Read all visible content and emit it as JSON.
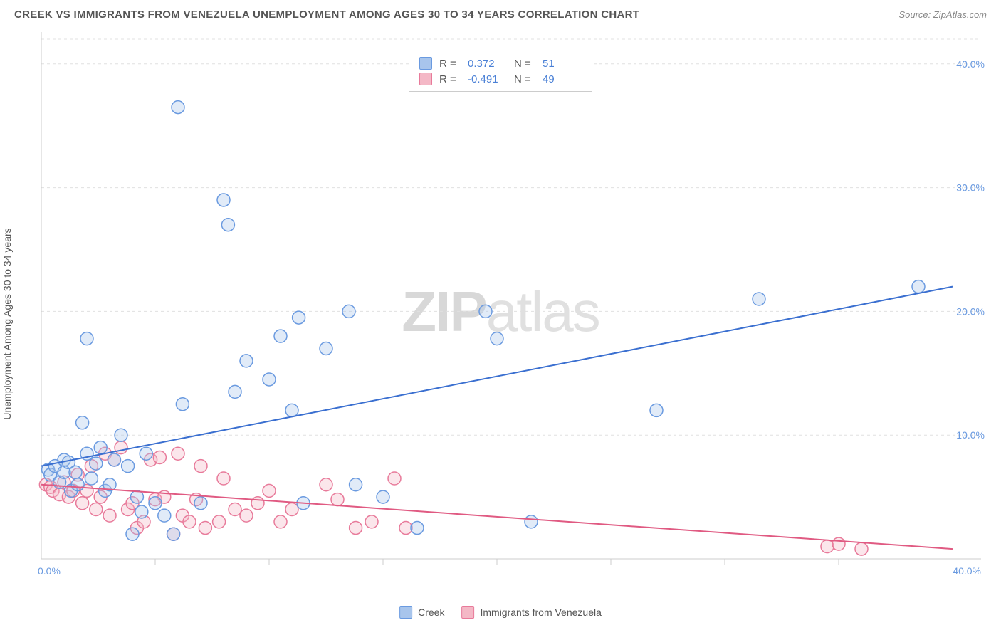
{
  "title": "CREEK VS IMMIGRANTS FROM VENEZUELA UNEMPLOYMENT AMONG AGES 30 TO 34 YEARS CORRELATION CHART",
  "source": "Source: ZipAtlas.com",
  "ylabel": "Unemployment Among Ages 30 to 34 years",
  "watermark_a": "ZIP",
  "watermark_b": "atlas",
  "chart": {
    "type": "scatter",
    "background_color": "#ffffff",
    "grid_color": "#e0e0e0",
    "axis_color": "#cccccc",
    "xlim": [
      0,
      40
    ],
    "ylim": [
      0,
      42
    ],
    "xtick_min_label": "0.0%",
    "xtick_max_label": "40.0%",
    "ytick_labels": [
      "10.0%",
      "20.0%",
      "30.0%",
      "40.0%"
    ],
    "ytick_values": [
      10,
      20,
      30,
      40
    ],
    "marker_radius": 9,
    "marker_fill_opacity": 0.35,
    "marker_stroke_width": 1.5,
    "line_width": 2
  },
  "series": [
    {
      "name": "Creek",
      "color_fill": "#a8c5ec",
      "color_stroke": "#6a9ae0",
      "line_color": "#3a6fd0",
      "R": "0.372",
      "N": "51",
      "trend": {
        "x1": 0,
        "y1": 7.5,
        "x2": 40,
        "y2": 22.0
      },
      "points": [
        [
          0.3,
          7.2
        ],
        [
          0.4,
          6.8
        ],
        [
          0.6,
          7.5
        ],
        [
          0.8,
          6.2
        ],
        [
          1.0,
          7.0
        ],
        [
          1.0,
          8.0
        ],
        [
          1.2,
          7.8
        ],
        [
          1.3,
          5.5
        ],
        [
          1.5,
          7.0
        ],
        [
          1.6,
          6.0
        ],
        [
          1.8,
          11.0
        ],
        [
          2.0,
          17.8
        ],
        [
          2.0,
          8.5
        ],
        [
          2.2,
          6.5
        ],
        [
          2.4,
          7.7
        ],
        [
          2.6,
          9.0
        ],
        [
          2.8,
          5.5
        ],
        [
          3.0,
          6.0
        ],
        [
          3.2,
          8.0
        ],
        [
          3.5,
          10.0
        ],
        [
          3.8,
          7.5
        ],
        [
          4.0,
          2.0
        ],
        [
          4.2,
          5.0
        ],
        [
          4.4,
          3.8
        ],
        [
          4.6,
          8.5
        ],
        [
          5.0,
          4.5
        ],
        [
          5.4,
          3.5
        ],
        [
          5.8,
          2.0
        ],
        [
          6.0,
          36.5
        ],
        [
          6.2,
          12.5
        ],
        [
          7.0,
          4.5
        ],
        [
          8.0,
          29.0
        ],
        [
          8.2,
          27.0
        ],
        [
          8.5,
          13.5
        ],
        [
          9.0,
          16.0
        ],
        [
          10.0,
          14.5
        ],
        [
          10.5,
          18.0
        ],
        [
          11.0,
          12.0
        ],
        [
          11.3,
          19.5
        ],
        [
          11.5,
          4.5
        ],
        [
          12.5,
          17.0
        ],
        [
          13.5,
          20.0
        ],
        [
          13.8,
          6.0
        ],
        [
          15.0,
          5.0
        ],
        [
          16.5,
          2.5
        ],
        [
          19.5,
          20.0
        ],
        [
          20.0,
          17.8
        ],
        [
          21.5,
          3.0
        ],
        [
          27.0,
          12.0
        ],
        [
          31.5,
          21.0
        ],
        [
          38.5,
          22.0
        ]
      ]
    },
    {
      "name": "Immigrants from Venezuela",
      "color_fill": "#f4b8c6",
      "color_stroke": "#e87a9a",
      "line_color": "#e05a82",
      "R": "-0.491",
      "N": "49",
      "trend": {
        "x1": 0,
        "y1": 6.0,
        "x2": 40,
        "y2": 0.8
      },
      "points": [
        [
          0.2,
          6.0
        ],
        [
          0.4,
          5.8
        ],
        [
          0.5,
          5.5
        ],
        [
          0.8,
          5.2
        ],
        [
          1.0,
          6.2
        ],
        [
          1.2,
          5.0
        ],
        [
          1.4,
          5.5
        ],
        [
          1.6,
          6.8
        ],
        [
          1.8,
          4.5
        ],
        [
          2.0,
          5.5
        ],
        [
          2.2,
          7.5
        ],
        [
          2.4,
          4.0
        ],
        [
          2.6,
          5.0
        ],
        [
          2.8,
          8.5
        ],
        [
          3.0,
          3.5
        ],
        [
          3.2,
          8.0
        ],
        [
          3.5,
          9.0
        ],
        [
          3.8,
          4.0
        ],
        [
          4.0,
          4.5
        ],
        [
          4.2,
          2.5
        ],
        [
          4.5,
          3.0
        ],
        [
          4.8,
          8.0
        ],
        [
          5.0,
          4.8
        ],
        [
          5.2,
          8.2
        ],
        [
          5.4,
          5.0
        ],
        [
          5.8,
          2.0
        ],
        [
          6.0,
          8.5
        ],
        [
          6.2,
          3.5
        ],
        [
          6.5,
          3.0
        ],
        [
          6.8,
          4.8
        ],
        [
          7.0,
          7.5
        ],
        [
          7.2,
          2.5
        ],
        [
          7.8,
          3.0
        ],
        [
          8.0,
          6.5
        ],
        [
          8.5,
          4.0
        ],
        [
          9.0,
          3.5
        ],
        [
          9.5,
          4.5
        ],
        [
          10.0,
          5.5
        ],
        [
          10.5,
          3.0
        ],
        [
          11.0,
          4.0
        ],
        [
          12.5,
          6.0
        ],
        [
          13.0,
          4.8
        ],
        [
          13.8,
          2.5
        ],
        [
          14.5,
          3.0
        ],
        [
          15.5,
          6.5
        ],
        [
          16.0,
          2.5
        ],
        [
          34.5,
          1.0
        ],
        [
          35.0,
          1.2
        ],
        [
          36.0,
          0.8
        ]
      ]
    }
  ],
  "legend_bottom": [
    {
      "label": "Creek",
      "fill": "#a8c5ec",
      "stroke": "#6a9ae0"
    },
    {
      "label": "Immigrants from Venezuela",
      "fill": "#f4b8c6",
      "stroke": "#e87a9a"
    }
  ]
}
